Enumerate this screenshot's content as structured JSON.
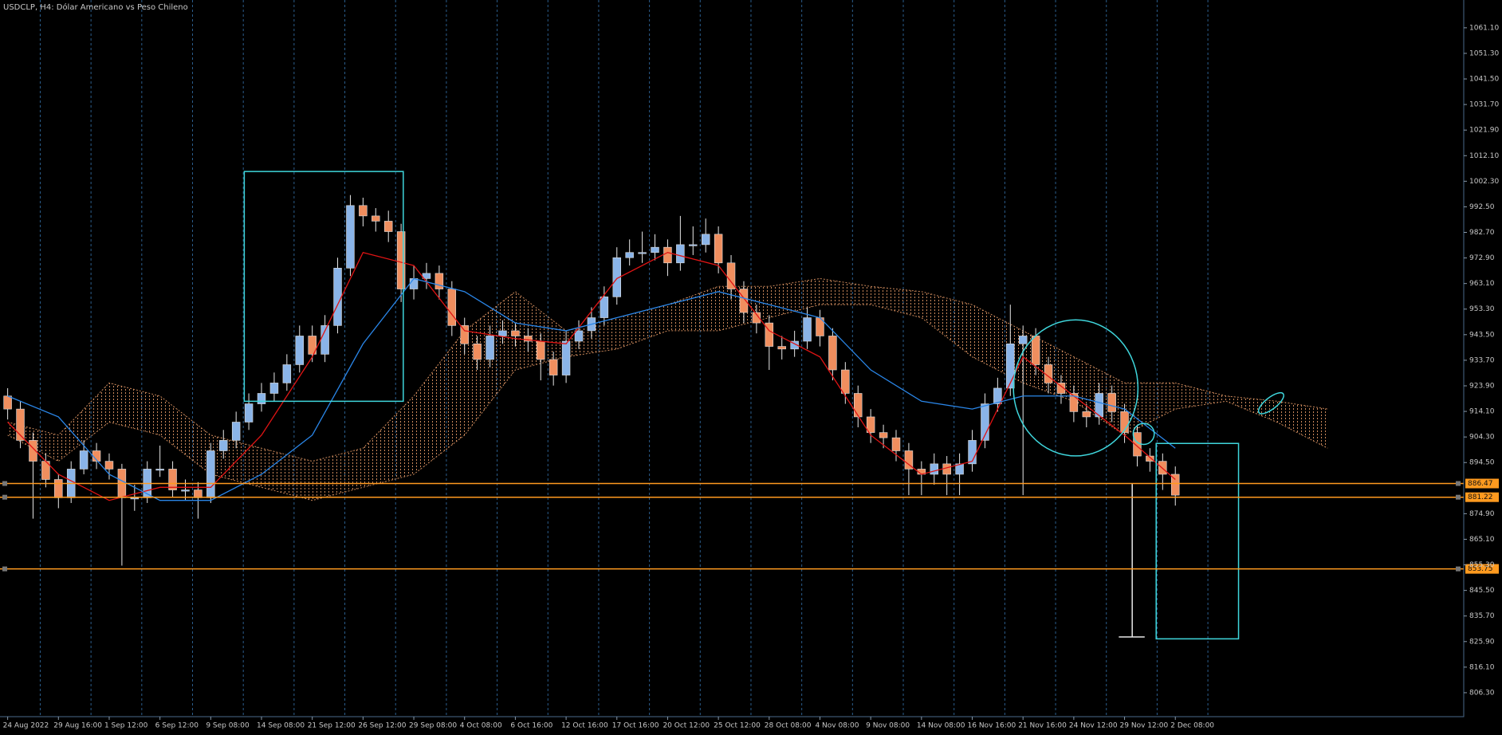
{
  "chart_data": {
    "type": "candlestick",
    "title": "USDCLP, H4:  Dólar Americano vs Peso Chileno",
    "colors": {
      "up": "#8ab4e8",
      "down": "#f08e5e"
    },
    "x_labels": [
      {
        "value": 0,
        "label": "24 Aug 2022"
      },
      {
        "value": 4,
        "label": "29 Aug 16:00"
      },
      {
        "value": 8,
        "label": "1 Sep 12:00"
      },
      {
        "value": 12,
        "label": "6 Sep 12:00"
      },
      {
        "value": 16,
        "label": "9 Sep 08:00"
      },
      {
        "value": 20,
        "label": "14 Sep 08:00"
      },
      {
        "value": 24,
        "label": "21 Sep 12:00"
      },
      {
        "value": 28,
        "label": "26 Sep 12:00"
      },
      {
        "value": 32,
        "label": "29 Sep 08:00"
      },
      {
        "value": 36,
        "label": "4 Oct 08:00"
      },
      {
        "value": 40,
        "label": "6 Oct 16:00"
      },
      {
        "value": 44,
        "label": "12 Oct 16:00"
      },
      {
        "value": 48,
        "label": "17 Oct 16:00"
      },
      {
        "value": 52,
        "label": "20 Oct 12:00"
      },
      {
        "value": 56,
        "label": "25 Oct 12:00"
      },
      {
        "value": 60,
        "label": "28 Oct 08:00"
      },
      {
        "value": 64,
        "label": "4 Nov 08:00"
      },
      {
        "value": 68,
        "label": "9 Nov 08:00"
      },
      {
        "value": 72,
        "label": "14 Nov 08:00"
      },
      {
        "value": 76,
        "label": "16 Nov 16:00"
      },
      {
        "value": 80,
        "label": "21 Nov 16:00"
      },
      {
        "value": 84,
        "label": "24 Nov 12:00"
      },
      {
        "value": 88,
        "label": "29 Nov 12:00"
      },
      {
        "value": 92,
        "label": "2 Dec 08:00"
      }
    ],
    "ohlc": {
      "open": [
        920,
        915,
        903,
        895,
        888,
        881,
        892,
        899,
        895,
        892,
        881,
        881,
        892,
        892,
        884,
        884,
        881,
        899,
        903,
        910,
        917,
        921,
        925,
        932,
        943,
        936,
        947,
        969,
        993,
        989,
        987,
        983,
        961,
        965,
        967,
        961,
        947,
        940,
        934,
        943,
        945,
        943,
        941,
        934,
        928,
        941,
        945,
        950,
        958,
        973,
        975,
        975,
        977,
        971,
        978,
        978,
        982,
        971,
        961,
        952,
        948,
        939,
        938,
        941,
        950,
        943,
        930,
        921,
        912,
        906,
        904,
        899,
        892,
        890,
        894,
        890,
        894,
        903,
        917,
        923,
        940,
        943,
        932,
        925,
        921,
        914,
        912,
        921,
        914,
        906,
        897,
        895,
        890
      ],
      "high": [
        923,
        918,
        906,
        898,
        890,
        895,
        903,
        902,
        898,
        894,
        886,
        895,
        901,
        895,
        888,
        887,
        902,
        907,
        914,
        921,
        925,
        929,
        936,
        947,
        947,
        951,
        973,
        997,
        996,
        992,
        991,
        986,
        970,
        971,
        970,
        964,
        950,
        943,
        947,
        949,
        948,
        946,
        944,
        937,
        945,
        949,
        954,
        962,
        977,
        980,
        983,
        982,
        980,
        989,
        985,
        988,
        985,
        974,
        964,
        955,
        951,
        943,
        945,
        954,
        953,
        946,
        933,
        924,
        915,
        909,
        907,
        902,
        895,
        898,
        897,
        898,
        907,
        921,
        927,
        955,
        947,
        946,
        935,
        928,
        924,
        917,
        925,
        924,
        917,
        909,
        900,
        898,
        893
      ],
      "low": [
        911,
        900,
        873,
        885,
        877,
        879,
        890,
        892,
        888,
        855,
        876,
        879,
        889,
        881,
        880,
        873,
        879,
        896,
        900,
        907,
        914,
        918,
        922,
        929,
        933,
        933,
        944,
        966,
        985,
        983,
        979,
        956,
        957,
        961,
        957,
        943,
        936,
        930,
        931,
        940,
        939,
        937,
        926,
        924,
        925,
        938,
        942,
        947,
        955,
        970,
        971,
        972,
        966,
        968,
        974,
        975,
        967,
        957,
        948,
        944,
        930,
        934,
        935,
        938,
        939,
        926,
        917,
        908,
        902,
        900,
        895,
        882,
        882,
        886,
        882,
        882,
        891,
        900,
        914,
        920,
        882,
        928,
        921,
        917,
        910,
        908,
        909,
        910,
        902,
        893,
        891,
        884,
        878
      ],
      "close": [
        915,
        903,
        895,
        888,
        881,
        892,
        899,
        895,
        892,
        881,
        881,
        892,
        892,
        884,
        884,
        881,
        899,
        903,
        910,
        917,
        921,
        925,
        932,
        943,
        936,
        947,
        969,
        993,
        989,
        987,
        983,
        961,
        965,
        967,
        961,
        947,
        940,
        934,
        943,
        945,
        943,
        941,
        934,
        928,
        941,
        945,
        950,
        958,
        973,
        975,
        975,
        977,
        971,
        978,
        978,
        982,
        971,
        961,
        952,
        948,
        939,
        938,
        941,
        950,
        943,
        930,
        921,
        912,
        906,
        904,
        899,
        892,
        890,
        894,
        890,
        894,
        903,
        917,
        923,
        940,
        943,
        932,
        925,
        921,
        914,
        912,
        921,
        914,
        906,
        897,
        895,
        890,
        882
      ]
    },
    "lines": [
      {
        "color": "#e01414",
        "x": [
          0,
          4,
          8,
          12,
          16,
          20,
          24,
          28,
          32,
          36,
          40,
          44,
          48,
          52,
          56,
          60,
          64,
          68,
          72,
          76,
          80,
          84,
          88,
          92
        ],
        "values": [
          910,
          890,
          880,
          885,
          885,
          905,
          935,
          975,
          970,
          945,
          942,
          940,
          965,
          975,
          970,
          945,
          935,
          905,
          890,
          895,
          935,
          920,
          905,
          888
        ]
      },
      {
        "color": "#2a86e8",
        "x": [
          0,
          4,
          8,
          12,
          16,
          20,
          24,
          28,
          32,
          36,
          40,
          44,
          48,
          52,
          56,
          60,
          64,
          68,
          72,
          76,
          80,
          84,
          88,
          92
        ],
        "values": [
          920,
          912,
          890,
          880,
          880,
          890,
          905,
          940,
          965,
          960,
          948,
          945,
          950,
          955,
          960,
          955,
          950,
          930,
          918,
          915,
          920,
          920,
          915,
          900
        ]
      }
    ],
    "cloud": {
      "color": "#c9875a",
      "x": [
        0,
        4,
        8,
        12,
        16,
        20,
        24,
        28,
        32,
        36,
        40,
        44,
        48,
        52,
        56,
        60,
        64,
        68,
        72,
        76,
        80,
        84,
        88,
        92,
        96,
        100,
        104
      ],
      "span_a": [
        910,
        905,
        925,
        920,
        905,
        900,
        895,
        900,
        920,
        945,
        960,
        945,
        950,
        955,
        962,
        962,
        965,
        962,
        960,
        955,
        945,
        935,
        925,
        925,
        920,
        918,
        915
      ],
      "span_b": [
        905,
        895,
        910,
        905,
        890,
        885,
        880,
        885,
        890,
        905,
        930,
        935,
        938,
        945,
        945,
        950,
        955,
        955,
        950,
        935,
        925,
        918,
        905,
        915,
        918,
        910,
        900
      ]
    },
    "levels": {
      "color": "#ff9a1f",
      "values": [
        886.47,
        881.22,
        853.75
      ]
    },
    "ylim": [
      797.12,
      1071.75
    ],
    "yticks": [
      {
        "value": 1061.1,
        "label": "1061.10"
      },
      {
        "value": 1051.3,
        "label": "1051.30"
      },
      {
        "value": 1041.5,
        "label": "1041.50"
      },
      {
        "value": 1031.7,
        "label": "1031.70"
      },
      {
        "value": 1021.9,
        "label": "1021.90"
      },
      {
        "value": 1012.1,
        "label": "1012.10"
      },
      {
        "value": 1002.3,
        "label": "1002.30"
      },
      {
        "value": 992.5,
        "label": "992.50"
      },
      {
        "value": 982.7,
        "label": "982.70"
      },
      {
        "value": 972.9,
        "label": "972.90"
      },
      {
        "value": 963.1,
        "label": "963.10"
      },
      {
        "value": 953.3,
        "label": "953.30"
      },
      {
        "value": 943.5,
        "label": "943.50"
      },
      {
        "value": 933.7,
        "label": "933.70"
      },
      {
        "value": 923.9,
        "label": "923.90"
      },
      {
        "value": 914.1,
        "label": "914.10"
      },
      {
        "value": 904.3,
        "label": "904.30"
      },
      {
        "value": 894.5,
        "label": "894.50"
      },
      {
        "value": 874.9,
        "label": "874.90"
      },
      {
        "value": 865.1,
        "label": "865.10"
      },
      {
        "value": 855.3,
        "label": "855.30"
      },
      {
        "value": 845.5,
        "label": "845.50"
      },
      {
        "value": 835.7,
        "label": "835.70"
      },
      {
        "value": 825.9,
        "label": "825.90"
      },
      {
        "value": 816.1,
        "label": "816.10"
      },
      {
        "value": 806.3,
        "label": "806.30"
      }
    ]
  }
}
